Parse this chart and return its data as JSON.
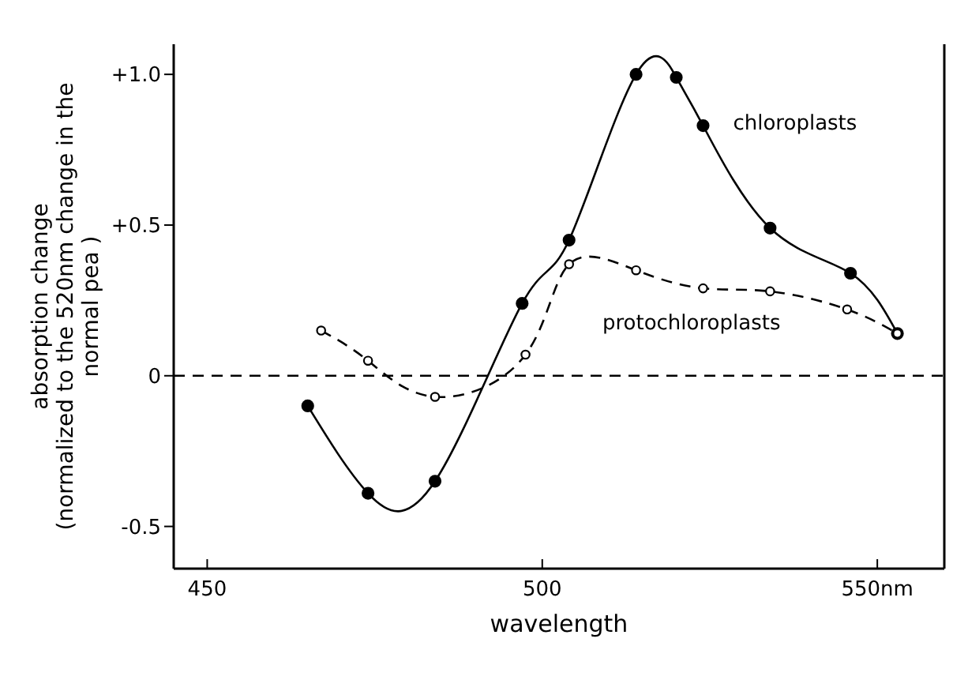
{
  "chart_data": {
    "type": "line",
    "xlabel": "wavelength",
    "ylabel": "absorption change\n(normalized to the 520nm change in the\nnormal pea )",
    "xlim": [
      445,
      560
    ],
    "ylim": [
      -0.64,
      1.1
    ],
    "xticks": [
      450,
      500,
      {
        "value": 550,
        "label": "550nm"
      }
    ],
    "yticks": [
      {
        "value": -0.5,
        "label": "-0.5"
      },
      0,
      {
        "value": 0.5,
        "label": "+0.5"
      },
      {
        "value": 1,
        "label": "+1.0"
      }
    ],
    "series": [
      {
        "name": "chloroplasts",
        "color": "#000000",
        "line_style": "solid",
        "x": [
          465,
          474,
          484,
          497,
          504,
          514,
          520,
          524,
          534,
          546,
          553
        ],
        "values": [
          -0.1,
          -0.39,
          -0.35,
          0.24,
          0.45,
          1.0,
          0.99,
          0.83,
          0.49,
          0.34,
          0.14
        ]
      },
      {
        "name": "protochloroplasts",
        "color": "#000000",
        "line_style": "dashed",
        "x": [
          467,
          474,
          484,
          497.5,
          504,
          514,
          524,
          534,
          545.5,
          553
        ],
        "values": [
          0.15,
          0.05,
          -0.07,
          0.07,
          0.37,
          0.35,
          0.29,
          0.28,
          0.22,
          0.14
        ]
      }
    ],
    "ref_lines": [
      {
        "axis": "y",
        "value": 0,
        "label": null,
        "color": "#000000",
        "line_style": "dashed"
      }
    ],
    "marker": "circle",
    "grid": false,
    "legend": false
  }
}
